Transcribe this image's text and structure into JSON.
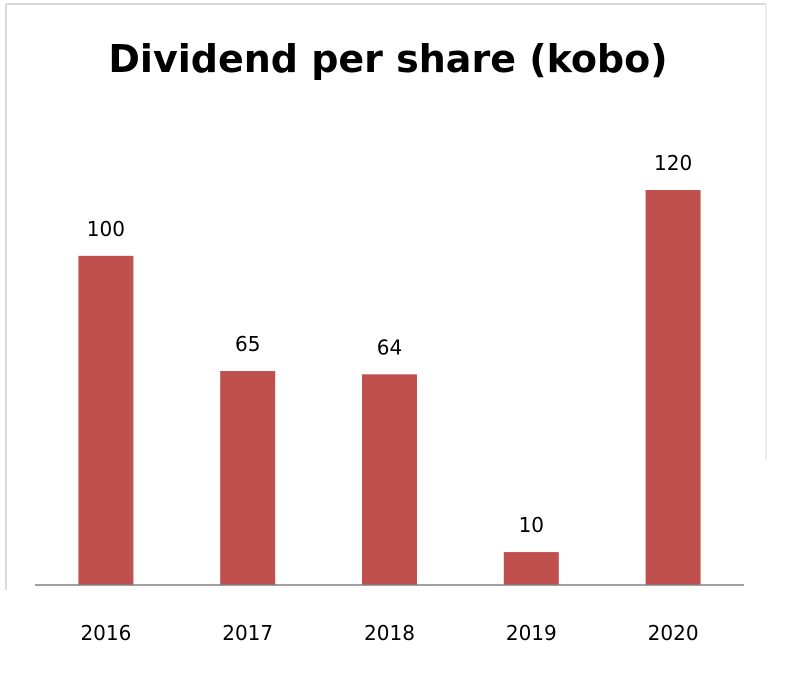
{
  "chart_data": {
    "type": "bar",
    "title": "Dividend per share (kobo)",
    "xlabel": "",
    "ylabel": "",
    "categories": [
      "2016",
      "2017",
      "2018",
      "2019",
      "2020"
    ],
    "values": [
      100,
      65,
      64,
      10,
      120
    ],
    "ylim": [
      0,
      120
    ],
    "grid": false,
    "legend": "none",
    "bar_color": "#c0504d",
    "data_labels": true
  }
}
